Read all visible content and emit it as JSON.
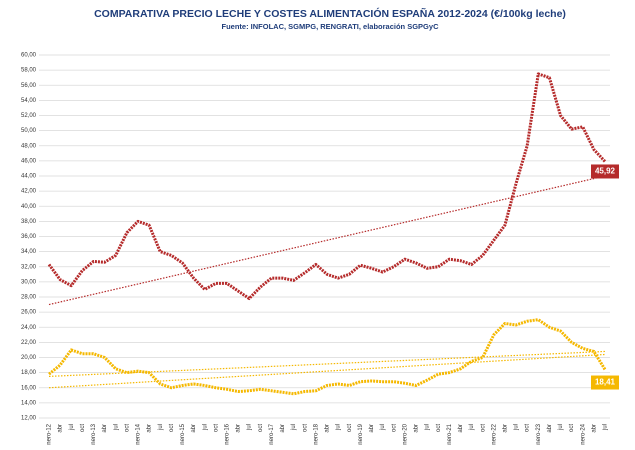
{
  "chart_data": {
    "type": "line",
    "title": "COMPARATIVA PRECIO LECHE Y COSTES ALIMENTACIÓN ESPAÑA 2012-2024 (€/100kg leche)",
    "subtitle": "Fuente: INFOLAC, SGMPG, RENGRATI, elaboración SGPGyC",
    "categories": [
      "nero-12",
      "abr",
      "jul",
      "oct",
      "nero-13",
      "abr",
      "jul",
      "oct",
      "nero-14",
      "abr",
      "jul",
      "oct",
      "nero-15",
      "abr",
      "jul",
      "oct",
      "nero-16",
      "abr",
      "jul",
      "oct",
      "nero-17",
      "abr",
      "jul",
      "oct",
      "nero-18",
      "abr",
      "jul",
      "oct",
      "nero-19",
      "abr",
      "jul",
      "oct",
      "nero-20",
      "abr",
      "jul",
      "oct",
      "nero-21",
      "abr",
      "jul",
      "oct",
      "nero-22",
      "abr",
      "jul",
      "oct",
      "nero-23",
      "abr",
      "jul",
      "oct",
      "nero-24",
      "abr",
      "jul"
    ],
    "series": [
      {
        "color": "#b52b2b",
        "values": [
          32.3,
          30.3,
          29.5,
          31.5,
          32.7,
          32.6,
          33.5,
          36.5,
          38.0,
          37.5,
          34.0,
          33.5,
          32.5,
          30.5,
          29.0,
          29.8,
          29.8,
          28.8,
          27.8,
          29.3,
          30.5,
          30.5,
          30.2,
          31.2,
          32.3,
          31.0,
          30.5,
          31.0,
          32.2,
          31.8,
          31.3,
          32.0,
          33.0,
          32.5,
          31.8,
          32.0,
          33.0,
          32.8,
          32.3,
          33.5,
          35.5,
          37.5,
          43.0,
          48.0,
          57.5,
          57.0,
          52.0,
          50.2,
          50.5,
          47.5,
          45.92
        ],
        "last_label": "45,92",
        "trends": [
          [
            27.0,
            44.0
          ]
        ]
      },
      {
        "color": "#f5b800",
        "values": [
          17.8,
          19.0,
          21.0,
          20.5,
          20.5,
          20.0,
          18.5,
          18.0,
          18.2,
          18.0,
          16.5,
          16.0,
          16.3,
          16.5,
          16.3,
          16.0,
          15.8,
          15.5,
          15.6,
          15.8,
          15.6,
          15.4,
          15.2,
          15.5,
          15.6,
          16.3,
          16.5,
          16.3,
          16.8,
          16.9,
          16.8,
          16.8,
          16.6,
          16.3,
          17.0,
          17.8,
          18.0,
          18.5,
          19.5,
          20.0,
          23.0,
          24.5,
          24.3,
          24.8,
          25.0,
          24.0,
          23.5,
          22.0,
          21.2,
          20.8,
          18.41
        ],
        "last_label": "18,41",
        "trends": [
          [
            16.0,
            20.4
          ],
          [
            17.5,
            20.8
          ]
        ]
      }
    ],
    "ylim": [
      12,
      60
    ],
    "yticks": [
      {
        "value": 12,
        "label": "12,00"
      },
      {
        "value": 14,
        "label": "14,00"
      },
      {
        "value": 16,
        "label": "16,00"
      },
      {
        "value": 18,
        "label": "18,00"
      },
      {
        "value": 20,
        "label": "20,00"
      },
      {
        "value": 22,
        "label": "22,00"
      },
      {
        "value": 24,
        "label": "24,00"
      },
      {
        "value": 26,
        "label": "26,00"
      },
      {
        "value": 28,
        "label": "28,00"
      },
      {
        "value": 30,
        "label": "30,00"
      },
      {
        "value": 32,
        "label": "32,00"
      },
      {
        "value": 34,
        "label": "34,00"
      },
      {
        "value": 36,
        "label": "36,00"
      },
      {
        "value": 38,
        "label": "38,00"
      },
      {
        "value": 40,
        "label": "40,00"
      },
      {
        "value": 42,
        "label": "42,00"
      },
      {
        "value": 44,
        "label": "44,00"
      },
      {
        "value": 46,
        "label": "46,00"
      },
      {
        "value": 48,
        "label": "48,00"
      },
      {
        "value": 50,
        "label": "50,00"
      },
      {
        "value": 52,
        "label": "52,00"
      },
      {
        "value": 54,
        "label": "54,00"
      },
      {
        "value": 56,
        "label": "56,00"
      },
      {
        "value": 58,
        "label": "58,00"
      },
      {
        "value": 60,
        "label": "60,00"
      }
    ],
    "grid": true
  }
}
